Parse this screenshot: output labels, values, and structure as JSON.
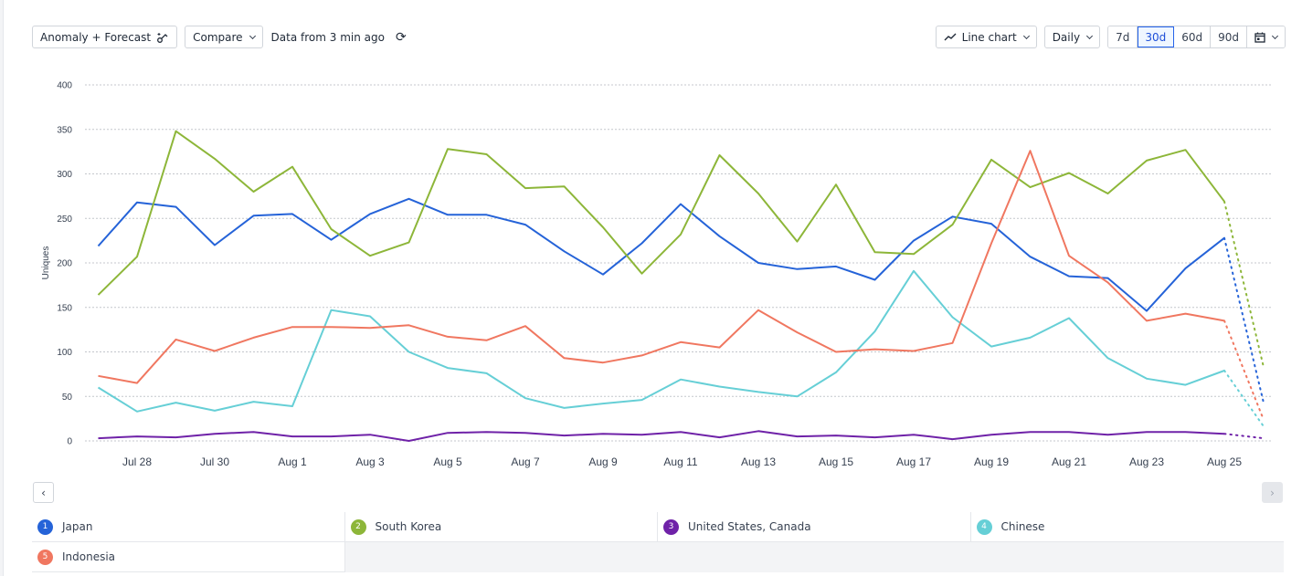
{
  "toolbar": {
    "anomaly_label": "Anomaly + Forecast",
    "compare_label": "Compare",
    "data_status": "Data from 3 min ago",
    "chart_type_label": "Line chart",
    "interval_label": "Daily",
    "ranges": [
      "7d",
      "30d",
      "60d",
      "90d"
    ],
    "active_range": "30d"
  },
  "legend": [
    {
      "index": "1",
      "label": "Japan",
      "color": "#2563d8"
    },
    {
      "index": "2",
      "label": "South Korea",
      "color": "#8db639"
    },
    {
      "index": "3",
      "label": "United States, Canada",
      "color": "#6f22a8"
    },
    {
      "index": "4",
      "label": "Chinese",
      "color": "#66cfd6"
    },
    {
      "index": "5",
      "label": "Indonesia",
      "color": "#f07760"
    }
  ],
  "chart_data": {
    "type": "line",
    "ylabel": "Uniques",
    "xlabel": "",
    "ylim": [
      0,
      400
    ],
    "yticks": [
      0,
      50,
      100,
      150,
      200,
      250,
      300,
      350,
      400
    ],
    "grid": true,
    "x": [
      "Jul 27",
      "Jul 28",
      "Jul 29",
      "Jul 30",
      "Jul 31",
      "Aug 1",
      "Aug 2",
      "Aug 3",
      "Aug 4",
      "Aug 5",
      "Aug 6",
      "Aug 7",
      "Aug 8",
      "Aug 9",
      "Aug 10",
      "Aug 11",
      "Aug 12",
      "Aug 13",
      "Aug 14",
      "Aug 15",
      "Aug 16",
      "Aug 17",
      "Aug 18",
      "Aug 19",
      "Aug 20",
      "Aug 21",
      "Aug 22",
      "Aug 23",
      "Aug 24",
      "Aug 25"
    ],
    "xtick_labels": [
      "Jul 28",
      "Jul 30",
      "Aug 1",
      "Aug 3",
      "Aug 5",
      "Aug 7",
      "Aug 9",
      "Aug 11",
      "Aug 13",
      "Aug 15",
      "Aug 17",
      "Aug 19",
      "Aug 21",
      "Aug 23",
      "Aug 25"
    ],
    "forecast_x": "Aug 26",
    "series": [
      {
        "name": "Japan",
        "color": "#2563d8",
        "values": [
          219,
          268,
          263,
          220,
          253,
          255,
          226,
          255,
          272,
          254,
          254,
          243,
          213,
          187,
          222,
          266,
          230,
          200,
          193,
          196,
          181,
          225,
          252,
          244,
          207,
          185,
          183,
          146,
          194,
          228
        ],
        "forecast": 45
      },
      {
        "name": "South Korea",
        "color": "#8db639",
        "values": [
          164,
          207,
          348,
          317,
          280,
          308,
          238,
          208,
          223,
          328,
          322,
          284,
          286,
          240,
          188,
          232,
          321,
          278,
          224,
          288,
          212,
          210,
          243,
          316,
          285,
          301,
          278,
          315,
          327,
          269
        ],
        "forecast": 85
      },
      {
        "name": "United States, Canada",
        "color": "#6f22a8",
        "values": [
          3,
          5,
          4,
          8,
          10,
          5,
          5,
          7,
          0,
          9,
          10,
          9,
          6,
          8,
          7,
          10,
          4,
          11,
          5,
          6,
          4,
          7,
          2,
          7,
          10,
          10,
          7,
          10,
          10,
          8
        ],
        "forecast": 3
      },
      {
        "name": "Chinese",
        "color": "#66cfd6",
        "values": [
          60,
          33,
          43,
          34,
          44,
          39,
          147,
          140,
          100,
          82,
          76,
          48,
          37,
          42,
          46,
          69,
          61,
          55,
          50,
          77,
          123,
          191,
          139,
          106,
          116,
          138,
          93,
          70,
          63,
          79
        ],
        "forecast": 17
      },
      {
        "name": "Indonesia",
        "color": "#f07760",
        "values": [
          73,
          65,
          114,
          101,
          116,
          128,
          128,
          127,
          130,
          117,
          113,
          129,
          93,
          88,
          96,
          111,
          105,
          147,
          122,
          100,
          103,
          101,
          110,
          222,
          326,
          208,
          178,
          135,
          143,
          135
        ],
        "forecast": 25
      }
    ]
  }
}
